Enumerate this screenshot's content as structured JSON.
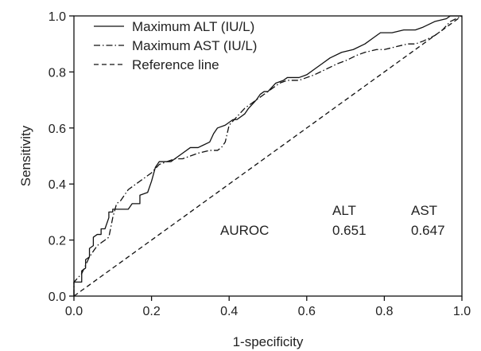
{
  "chart_data": {
    "type": "line",
    "xlabel": "1-specificity",
    "ylabel": "Sensitivity",
    "xlim": [
      0,
      1
    ],
    "ylim": [
      0,
      1
    ],
    "xticks": [
      "0.0",
      "0.2",
      "0.4",
      "0.6",
      "0.8",
      "1.0"
    ],
    "yticks": [
      "0.0",
      "0.2",
      "0.4",
      "0.6",
      "0.8",
      "1.0"
    ],
    "grid": false,
    "legend_position": "top-left",
    "series": [
      {
        "name": "Maximum ALT (IU/L)",
        "style": "solid",
        "color": "#111111",
        "x": [
          0.0,
          0.0,
          0.02,
          0.02,
          0.03,
          0.03,
          0.04,
          0.04,
          0.05,
          0.05,
          0.06,
          0.07,
          0.07,
          0.08,
          0.09,
          0.09,
          0.1,
          0.1,
          0.12,
          0.14,
          0.15,
          0.17,
          0.17,
          0.19,
          0.2,
          0.21,
          0.22,
          0.25,
          0.28,
          0.3,
          0.32,
          0.35,
          0.36,
          0.37,
          0.39,
          0.41,
          0.42,
          0.44,
          0.45,
          0.47,
          0.48,
          0.49,
          0.5,
          0.52,
          0.54,
          0.55,
          0.58,
          0.6,
          0.62,
          0.64,
          0.66,
          0.69,
          0.72,
          0.75,
          0.77,
          0.79,
          0.82,
          0.85,
          0.88,
          0.9,
          0.93,
          0.96,
          0.97,
          1.0
        ],
        "y": [
          0.0,
          0.05,
          0.05,
          0.09,
          0.1,
          0.13,
          0.14,
          0.17,
          0.18,
          0.21,
          0.22,
          0.22,
          0.24,
          0.24,
          0.28,
          0.3,
          0.3,
          0.31,
          0.31,
          0.31,
          0.33,
          0.33,
          0.36,
          0.37,
          0.41,
          0.46,
          0.48,
          0.48,
          0.51,
          0.53,
          0.53,
          0.55,
          0.58,
          0.6,
          0.61,
          0.63,
          0.63,
          0.65,
          0.67,
          0.7,
          0.72,
          0.73,
          0.73,
          0.76,
          0.77,
          0.78,
          0.78,
          0.79,
          0.81,
          0.83,
          0.85,
          0.87,
          0.88,
          0.9,
          0.92,
          0.94,
          0.94,
          0.95,
          0.95,
          0.96,
          0.98,
          0.99,
          1.0,
          1.0
        ]
      },
      {
        "name": "Maximum AST (IU/L)",
        "style": "dash-dot",
        "color": "#111111",
        "x": [
          0.0,
          0.0,
          0.02,
          0.03,
          0.04,
          0.05,
          0.06,
          0.08,
          0.09,
          0.1,
          0.11,
          0.12,
          0.14,
          0.16,
          0.18,
          0.2,
          0.22,
          0.24,
          0.26,
          0.28,
          0.3,
          0.32,
          0.35,
          0.37,
          0.38,
          0.39,
          0.4,
          0.42,
          0.44,
          0.46,
          0.48,
          0.5,
          0.52,
          0.53,
          0.55,
          0.58,
          0.6,
          0.62,
          0.65,
          0.68,
          0.7,
          0.73,
          0.75,
          0.78,
          0.8,
          0.83,
          0.86,
          0.88,
          0.9,
          0.93,
          0.95,
          0.97,
          1.0
        ],
        "y": [
          0.0,
          0.05,
          0.08,
          0.11,
          0.14,
          0.16,
          0.18,
          0.2,
          0.21,
          0.28,
          0.33,
          0.34,
          0.38,
          0.4,
          0.42,
          0.44,
          0.47,
          0.48,
          0.49,
          0.49,
          0.5,
          0.51,
          0.52,
          0.52,
          0.53,
          0.55,
          0.61,
          0.64,
          0.67,
          0.69,
          0.71,
          0.73,
          0.75,
          0.76,
          0.77,
          0.77,
          0.78,
          0.79,
          0.81,
          0.83,
          0.84,
          0.86,
          0.87,
          0.88,
          0.88,
          0.89,
          0.9,
          0.9,
          0.91,
          0.93,
          0.95,
          0.98,
          1.0
        ]
      },
      {
        "name": "Reference line",
        "style": "dashed",
        "color": "#111111",
        "x": [
          0,
          1
        ],
        "y": [
          0,
          1
        ]
      }
    ],
    "annotations": {
      "label": "AUROC",
      "col1_header": "ALT",
      "col2_header": "AST",
      "col1_value": "0.651",
      "col2_value": "0.647"
    }
  }
}
